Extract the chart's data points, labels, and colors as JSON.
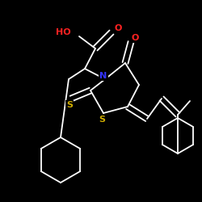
{
  "bg_color": "#000000",
  "atom_colors": {
    "C": "#FFFFFF",
    "N": "#3333FF",
    "O": "#FF2222",
    "S": "#CCAA00",
    "H": "#FFFFFF"
  },
  "bond_color": "#FFFFFF",
  "bond_lw": 1.3,
  "font_size": 7.5
}
